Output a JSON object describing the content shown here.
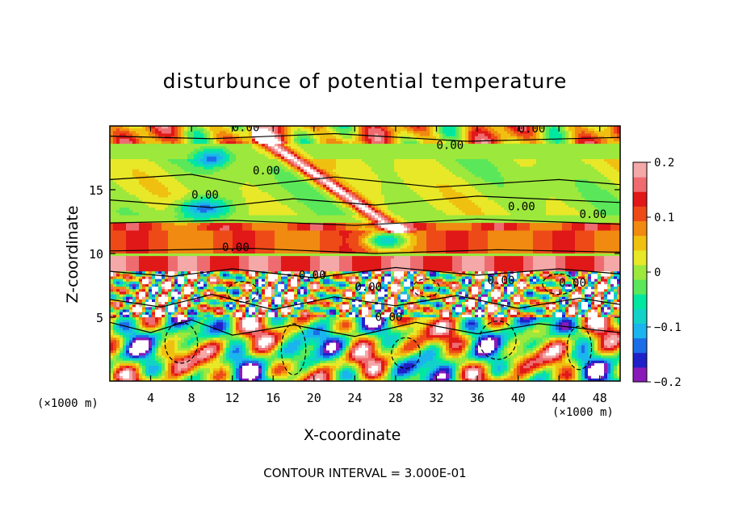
{
  "chart_data": {
    "type": "heatmap",
    "title": "disturbunce of potential temperature",
    "xlabel": "X-coordinate",
    "ylabel": "Z-coordinate",
    "x_unit_label": "(×1000 m)",
    "x_ticks": [
      4,
      8,
      12,
      16,
      20,
      24,
      28,
      32,
      36,
      40,
      44,
      48
    ],
    "y_ticks": [
      5,
      10,
      15
    ],
    "xlim": [
      0,
      50
    ],
    "ylim": [
      0,
      20
    ],
    "colorbar": {
      "ticks": [
        "0.2",
        "0.1",
        "0",
        "−0.1",
        "−0.2"
      ],
      "range": [
        -0.2,
        0.2
      ],
      "colors": [
        "#8a1ab8",
        "#2020c8",
        "#1c6ee8",
        "#1ab4ee",
        "#12d2c8",
        "#00e8a0",
        "#5ae85a",
        "#9ce83c",
        "#e8e828",
        "#f0c010",
        "#f08a10",
        "#ee4a18",
        "#e01818",
        "#ee6c70",
        "#f4a8a8"
      ]
    },
    "contour_labels": [
      "0.00",
      "0.00",
      "0.00",
      "0.00",
      "0.00",
      "0.00",
      "0.00",
      "0.00",
      "0.00",
      "0.00",
      "0.00",
      "0.00",
      "0.00"
    ],
    "annotation": "CONTOUR INTERVAL = 3.000E-01"
  }
}
